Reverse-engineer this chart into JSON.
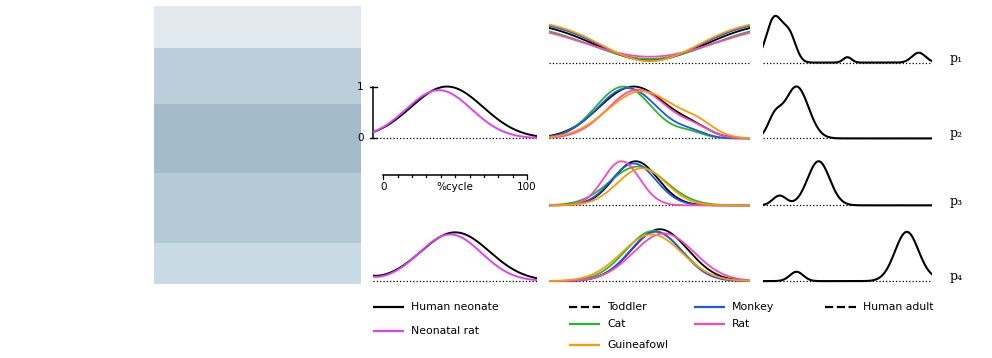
{
  "fig_width": 9.92,
  "fig_height": 3.58,
  "dpi": 100,
  "synergy_labels": [
    "p₁",
    "p₂",
    "p₃",
    "p₄"
  ],
  "colors": {
    "human_neonate": "#000000",
    "neonatal_rat": "#e040fb",
    "toddler": "#000000",
    "cat": "#22bb22",
    "monkey": "#2255ee",
    "rat": "#ff44bb",
    "guineafowl": "#ff9900",
    "human_adult": "#000000"
  },
  "legend_col1": [
    {
      "label": "Human neonate",
      "color": "#000000",
      "dash": "solid"
    },
    {
      "label": "Neonatal rat",
      "color": "#e040fb",
      "dash": "solid"
    }
  ],
  "legend_col2a": [
    {
      "label": "Toddler",
      "color": "#000000",
      "dash": "dashed"
    },
    {
      "label": "Cat",
      "color": "#22bb22",
      "dash": "solid"
    },
    {
      "label": "Guineafowl",
      "color": "#ff9900",
      "dash": "solid"
    }
  ],
  "legend_col2b": [
    {
      "label": "Monkey",
      "color": "#2255ee",
      "dash": "solid"
    },
    {
      "label": "Rat",
      "color": "#ff44bb",
      "dash": "solid"
    }
  ],
  "legend_col3": [
    {
      "label": "Human adult",
      "color": "#000000",
      "dash": "dashed"
    }
  ]
}
